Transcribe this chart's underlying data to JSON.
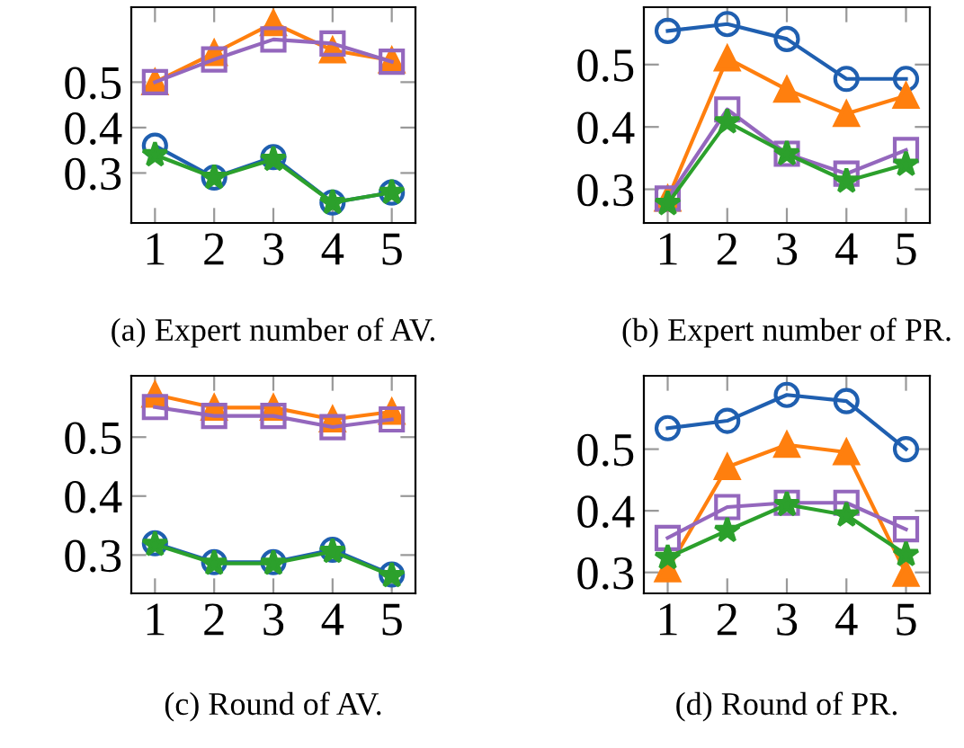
{
  "chart_data": [
    {
      "type": "line",
      "title": "(a) Expert number of AV.",
      "x": [
        1,
        2,
        3,
        4,
        5
      ],
      "xlim": [
        0.6,
        5.4
      ],
      "xticks": [
        1,
        2,
        3,
        4,
        5
      ],
      "ylim": [
        0.19,
        0.665
      ],
      "yticks": [
        0.3,
        0.4,
        0.5
      ],
      "grid": false,
      "series": [
        {
          "color": "#1f5fb0",
          "marker": "circle",
          "values": [
            0.36,
            0.29,
            0.335,
            0.235,
            0.257
          ]
        },
        {
          "color": "#ff7f0e",
          "marker": "triangle",
          "values": [
            0.5,
            0.564,
            0.63,
            0.57,
            0.548
          ]
        },
        {
          "color": "#9467bd",
          "marker": "square",
          "values": [
            0.5,
            0.55,
            0.594,
            0.585,
            0.545
          ]
        },
        {
          "color": "#2ca02c",
          "marker": "star",
          "values": [
            0.34,
            0.29,
            0.33,
            0.235,
            0.257
          ]
        }
      ]
    },
    {
      "type": "line",
      "title": "(b) Expert number of PR.",
      "x": [
        1,
        2,
        3,
        4,
        5
      ],
      "xlim": [
        0.6,
        5.4
      ],
      "xticks": [
        1,
        2,
        3,
        4,
        5
      ],
      "ylim": [
        0.246,
        0.592
      ],
      "yticks": [
        0.3,
        0.4,
        0.5
      ],
      "grid": false,
      "series": [
        {
          "color": "#1f5fb0",
          "marker": "circle",
          "values": [
            0.554,
            0.565,
            0.541,
            0.477,
            0.477
          ]
        },
        {
          "color": "#ff7f0e",
          "marker": "triangle",
          "values": [
            0.285,
            0.51,
            0.46,
            0.421,
            0.45
          ]
        },
        {
          "color": "#9467bd",
          "marker": "square",
          "values": [
            0.285,
            0.428,
            0.357,
            0.325,
            0.363
          ]
        },
        {
          "color": "#2ca02c",
          "marker": "star",
          "values": [
            0.277,
            0.408,
            0.357,
            0.313,
            0.34
          ]
        }
      ]
    },
    {
      "type": "line",
      "title": "(c) Round of AV.",
      "x": [
        1,
        2,
        3,
        4,
        5
      ],
      "xlim": [
        0.6,
        5.4
      ],
      "xticks": [
        1,
        2,
        3,
        4,
        5
      ],
      "ylim": [
        0.235,
        0.604
      ],
      "yticks": [
        0.3,
        0.4,
        0.5
      ],
      "grid": false,
      "series": [
        {
          "color": "#1f5fb0",
          "marker": "circle",
          "values": [
            0.32,
            0.288,
            0.288,
            0.309,
            0.267
          ]
        },
        {
          "color": "#ff7f0e",
          "marker": "triangle",
          "values": [
            0.572,
            0.55,
            0.55,
            0.53,
            0.543
          ]
        },
        {
          "color": "#9467bd",
          "marker": "square",
          "values": [
            0.551,
            0.536,
            0.536,
            0.517,
            0.53
          ]
        },
        {
          "color": "#2ca02c",
          "marker": "star",
          "values": [
            0.318,
            0.286,
            0.286,
            0.306,
            0.265
          ]
        }
      ]
    },
    {
      "type": "line",
      "title": "(d) Round of PR.",
      "x": [
        1,
        2,
        3,
        4,
        5
      ],
      "xlim": [
        0.6,
        5.4
      ],
      "xticks": [
        1,
        2,
        3,
        4,
        5
      ],
      "ylim": [
        0.266,
        0.619
      ],
      "yticks": [
        0.3,
        0.4,
        0.5
      ],
      "grid": false,
      "series": [
        {
          "color": "#1f5fb0",
          "marker": "circle",
          "values": [
            0.534,
            0.546,
            0.588,
            0.578,
            0.5
          ]
        },
        {
          "color": "#ff7f0e",
          "marker": "triangle",
          "values": [
            0.305,
            0.471,
            0.507,
            0.495,
            0.298
          ]
        },
        {
          "color": "#9467bd",
          "marker": "square",
          "values": [
            0.356,
            0.406,
            0.413,
            0.413,
            0.37
          ]
        },
        {
          "color": "#2ca02c",
          "marker": "star",
          "values": [
            0.324,
            0.368,
            0.41,
            0.393,
            0.329
          ]
        }
      ]
    }
  ]
}
